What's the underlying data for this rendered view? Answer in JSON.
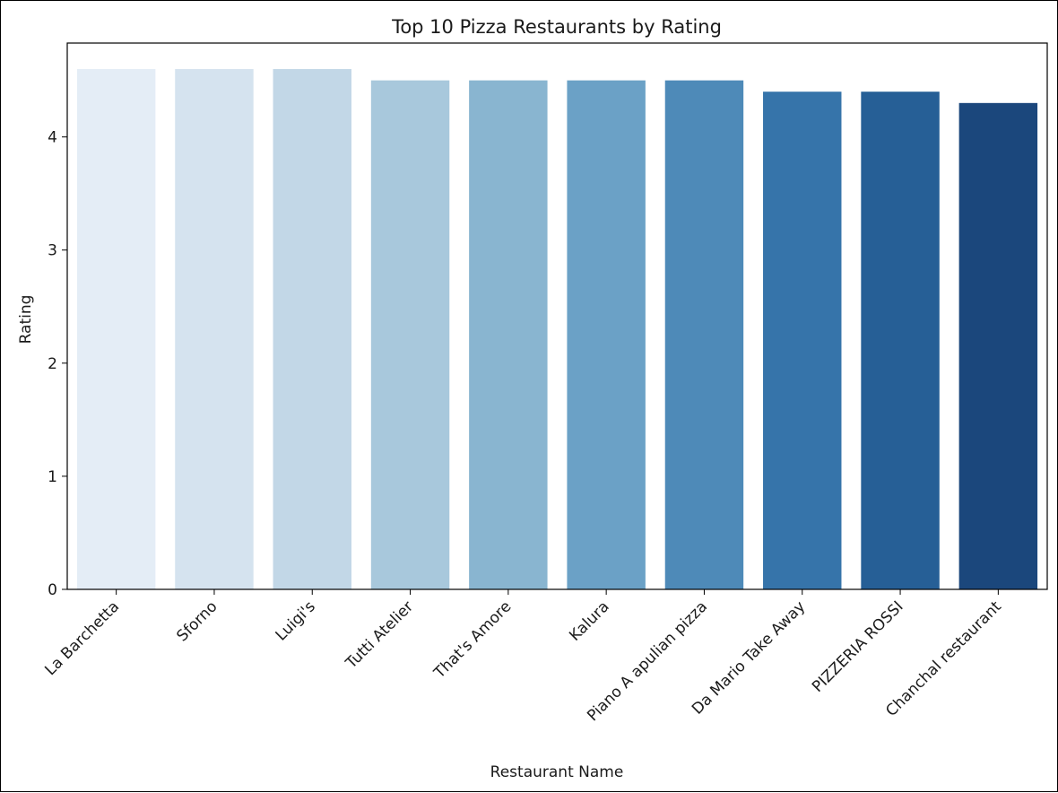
{
  "chart_data": {
    "type": "bar",
    "title": "Top 10 Pizza Restaurants by Rating",
    "xlabel": "Restaurant Name",
    "ylabel": "Rating",
    "categories": [
      "La Barchetta",
      "Sforno",
      "Luigi's",
      "Tutti Atelier",
      "That's Amore",
      "Kalura",
      "Piano A apulian pizza",
      "Da Mario Take Away",
      "PIZZERIA ROSSI",
      "Chanchal restaurant"
    ],
    "values": [
      4.6,
      4.6,
      4.6,
      4.5,
      4.5,
      4.5,
      4.5,
      4.4,
      4.4,
      4.3
    ],
    "ylim": [
      0,
      4.83
    ],
    "yticks": [
      0,
      1,
      2,
      3,
      4
    ],
    "grid": false,
    "legend": "none",
    "colors": [
      "#e4edf6",
      "#d5e3ef",
      "#c2d7e7",
      "#a8c8dc",
      "#89b5d0",
      "#6ba1c6",
      "#4e8ab8",
      "#3674aa",
      "#265f96",
      "#1b477c"
    ]
  }
}
